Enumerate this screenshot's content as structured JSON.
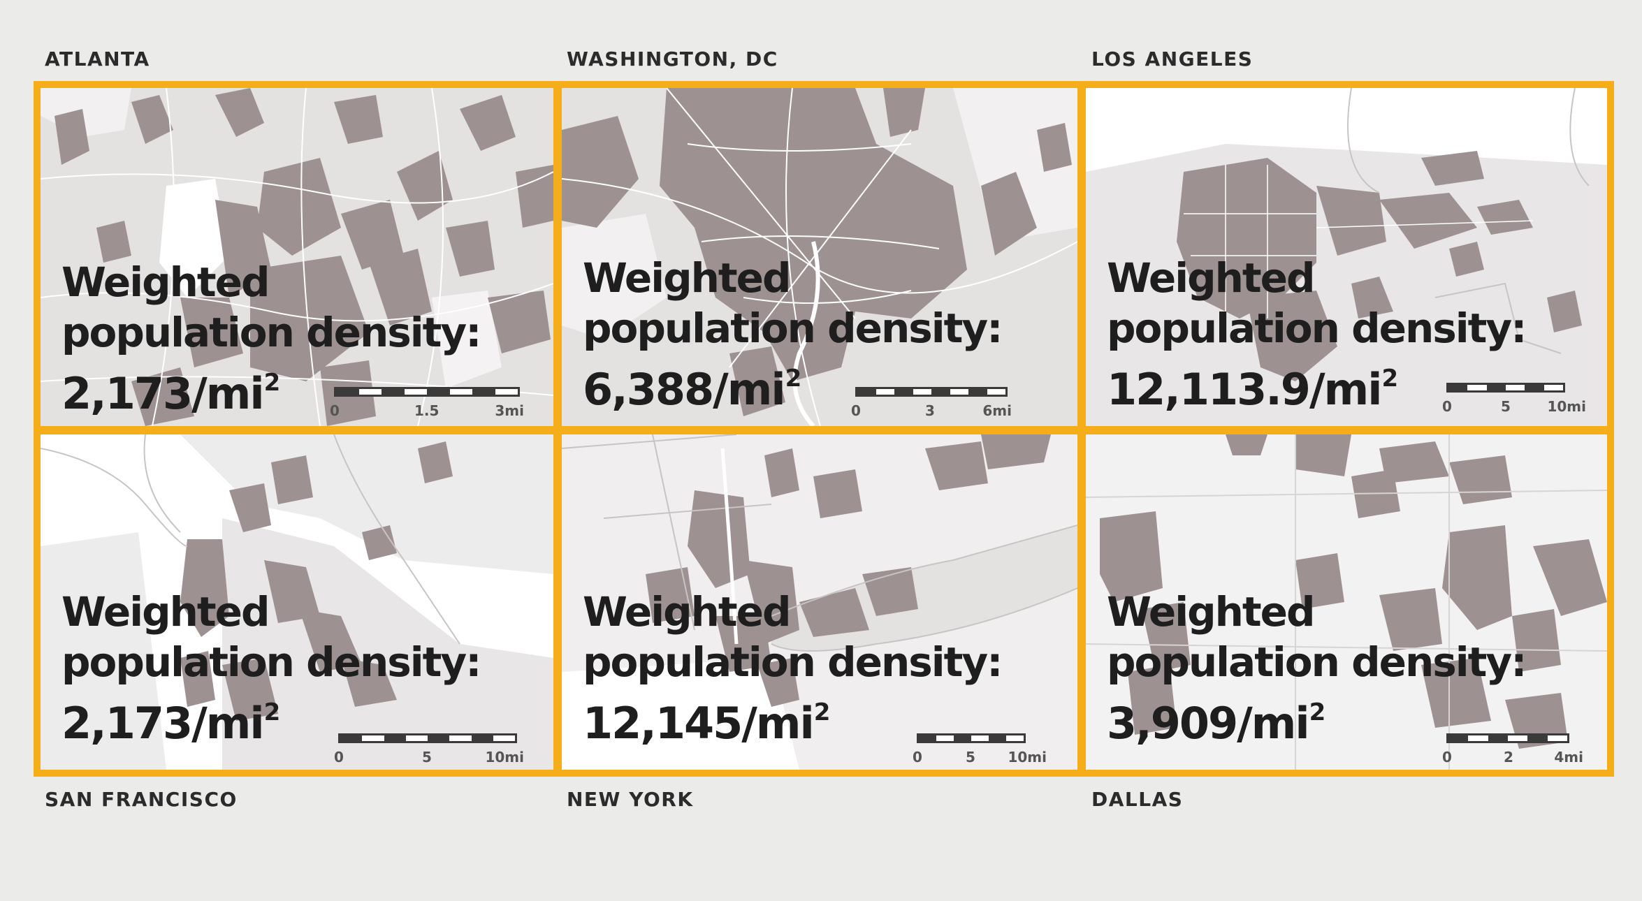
{
  "cities": [
    {
      "id": "atlanta",
      "name": "ATLANTA",
      "line1": "Weighted",
      "line2": "population density:",
      "value": "2,173/mi",
      "sup": "2",
      "scale": [
        "0",
        "1.5",
        "3mi"
      ]
    },
    {
      "id": "washington-dc",
      "name": "WASHINGTON, DC",
      "line1": "Weighted",
      "line2": "population density:",
      "value": "6,388/mi",
      "sup": "2",
      "scale": [
        "0",
        "3",
        "6mi"
      ]
    },
    {
      "id": "los-angeles",
      "name": "LOS ANGELES",
      "line1": "Weighted",
      "line2": "population density:",
      "value": "12,113.9/mi",
      "sup": "2",
      "scale": [
        "0",
        "5",
        "10mi"
      ]
    },
    {
      "id": "san-francisco",
      "name": "SAN FRANCISCO",
      "line1": "Weighted",
      "line2": "population density:",
      "value": "2,173/mi",
      "sup": "2",
      "scale": [
        "0",
        "5",
        "10mi"
      ]
    },
    {
      "id": "new-york",
      "name": "NEW YORK",
      "line1": "Weighted",
      "line2": "population density:",
      "value": "12,145/mi",
      "sup": "2",
      "scale": [
        "0",
        "5",
        "10mi"
      ]
    },
    {
      "id": "dallas",
      "name": "DALLAS",
      "line1": "Weighted",
      "line2": "population density:",
      "value": "3,909/mi",
      "sup": "2",
      "scale": [
        "0",
        "2",
        "4mi"
      ]
    }
  ],
  "colors": {
    "frame": "#f5ad1a",
    "tract": "#9e9192",
    "tract_light": "#e4e1e1",
    "boundary": "#c9c4c4",
    "text": "#1e1e1e",
    "background": "#ebebea"
  }
}
